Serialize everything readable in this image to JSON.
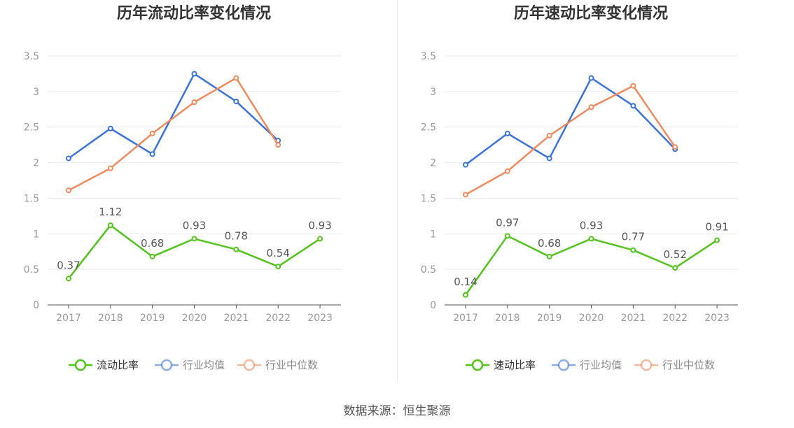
{
  "footer": {
    "source": "数据来源：恒生聚源"
  },
  "colors": {
    "blue": "#3b73d9",
    "orange": "#f08a5d",
    "green": "#52c41a",
    "axis": "#555555",
    "grid": "#e6e9ef"
  },
  "chart_data": [
    {
      "type": "line",
      "title": "历年流动比率变化情况",
      "categories": [
        "2017",
        "2018",
        "2019",
        "2020",
        "2021",
        "2022",
        "2023"
      ],
      "ylim": [
        0,
        3.5
      ],
      "yticks": [
        "0",
        "0.5",
        "1",
        "1.5",
        "2",
        "2.5",
        "3",
        "3.5"
      ],
      "grid": true,
      "legend_position": "bottom",
      "series": [
        {
          "name": "流动比率",
          "color": "#52c41a",
          "values": [
            0.37,
            1.12,
            0.68,
            0.93,
            0.78,
            0.54,
            0.93
          ],
          "labels": [
            "0.37",
            "1.12",
            "0.68",
            "0.93",
            "0.78",
            "0.54",
            "0.93"
          ]
        },
        {
          "name": "行业均值",
          "color": "#3b73d9",
          "values": [
            2.06,
            2.48,
            2.12,
            3.25,
            2.86,
            2.31,
            null
          ]
        },
        {
          "name": "行业中位数",
          "color": "#f08a5d",
          "values": [
            1.61,
            1.92,
            2.41,
            2.85,
            3.19,
            2.25,
            null
          ]
        }
      ]
    },
    {
      "type": "line",
      "title": "历年速动比率变化情况",
      "categories": [
        "2017",
        "2018",
        "2019",
        "2020",
        "2021",
        "2022",
        "2023"
      ],
      "ylim": [
        0,
        3.5
      ],
      "yticks": [
        "0",
        "0.5",
        "1",
        "1.5",
        "2",
        "2.5",
        "3",
        "3.5"
      ],
      "grid": true,
      "legend_position": "bottom",
      "series": [
        {
          "name": "速动比率",
          "color": "#52c41a",
          "values": [
            0.14,
            0.97,
            0.68,
            0.93,
            0.77,
            0.52,
            0.91
          ],
          "labels": [
            "0.14",
            "0.97",
            "0.68",
            "0.93",
            "0.77",
            "0.52",
            "0.91"
          ]
        },
        {
          "name": "行业均值",
          "color": "#3b73d9",
          "values": [
            1.97,
            2.41,
            2.06,
            3.19,
            2.8,
            2.19,
            null
          ]
        },
        {
          "name": "行业中位数",
          "color": "#f08a5d",
          "values": [
            1.55,
            1.88,
            2.38,
            2.78,
            3.08,
            2.22,
            null
          ]
        }
      ]
    }
  ]
}
